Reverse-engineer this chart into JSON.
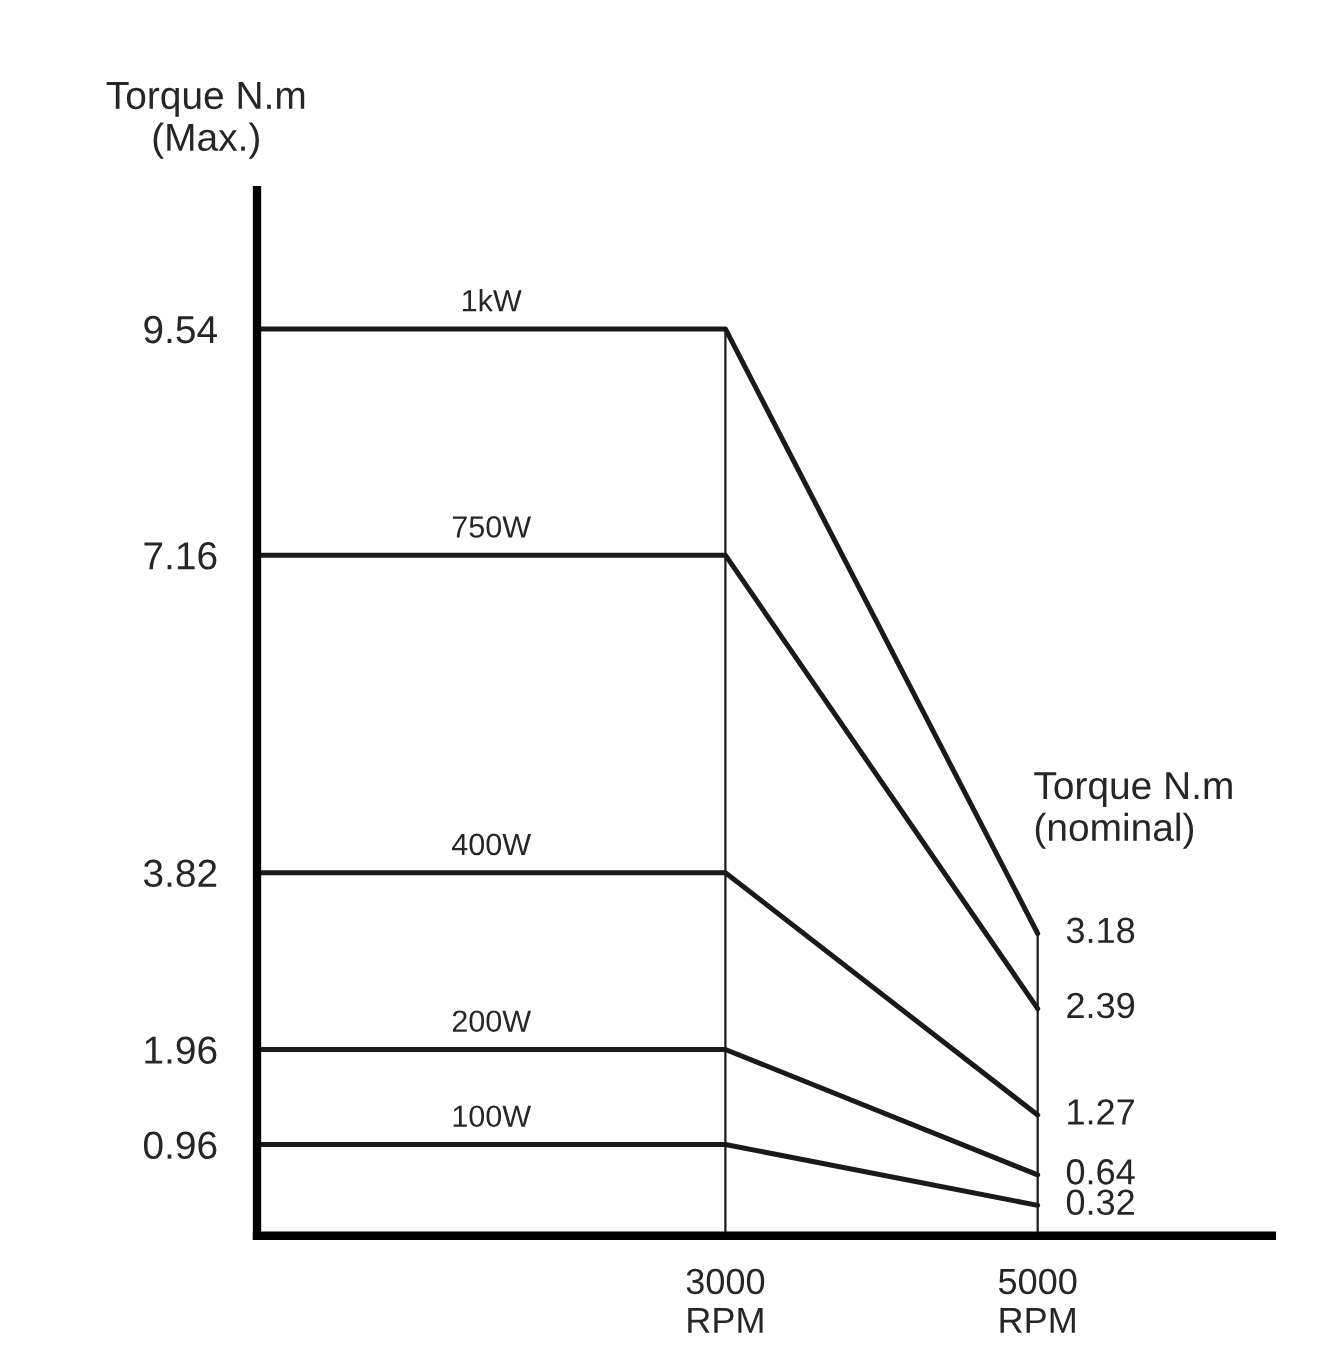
{
  "chart_data": {
    "type": "line",
    "ylabel": "Torque N.m\n(Max.)",
    "annotations": [
      "Torque N.m\n(nominal)"
    ],
    "x": [
      0,
      3000,
      5000
    ],
    "series": [
      {
        "name": "1kW",
        "color": "#1a1a1a",
        "values": [
          9.54,
          9.54,
          3.18
        ],
        "value_labels": [
          null,
          null,
          "3.18"
        ]
      },
      {
        "name": "750W",
        "color": "#1a1a1a",
        "values": [
          7.16,
          7.16,
          2.39
        ],
        "value_labels": [
          null,
          null,
          "2.39"
        ]
      },
      {
        "name": "400W",
        "color": "#1a1a1a",
        "values": [
          3.82,
          3.82,
          1.27
        ],
        "value_labels": [
          null,
          null,
          "1.27"
        ]
      },
      {
        "name": "200W",
        "color": "#1a1a1a",
        "values": [
          1.96,
          1.96,
          0.64
        ],
        "value_labels": [
          null,
          null,
          "0.64"
        ]
      },
      {
        "name": "100W",
        "color": "#1a1a1a",
        "values": [
          0.96,
          0.96,
          0.32
        ],
        "value_labels": [
          null,
          null,
          "0.32"
        ]
      }
    ],
    "ref_lines": [
      {
        "axis": "x",
        "value": 3000,
        "label": null
      },
      {
        "axis": "x",
        "value": 5000,
        "label": null
      }
    ],
    "xlim": [
      0,
      6500
    ],
    "ylim": [
      0,
      11
    ],
    "xticks": [
      {
        "value": 3000,
        "label": "3000\nRPM"
      },
      {
        "value": 5000,
        "label": "5000\nRPM"
      }
    ],
    "yticks": [
      0.96,
      1.96,
      3.82,
      7.16,
      9.54
    ],
    "grid": false,
    "legend": false,
    "marker": "none",
    "line_style": "solid"
  }
}
